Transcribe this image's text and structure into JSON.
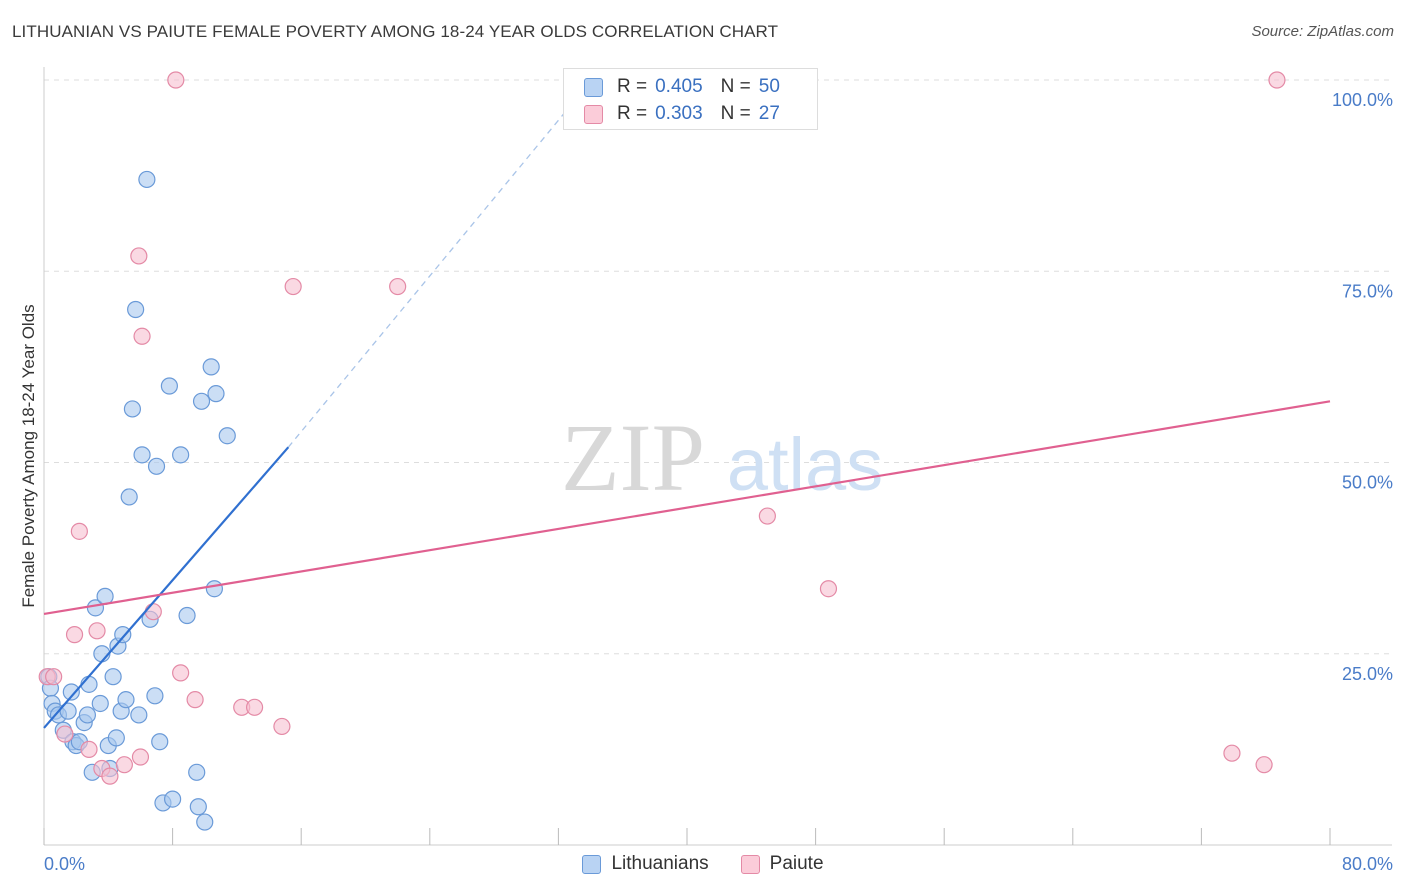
{
  "header": {
    "title": "LITHUANIAN VS PAIUTE FEMALE POVERTY AMONG 18-24 YEAR OLDS CORRELATION CHART",
    "source": "Source: ZipAtlas.com"
  },
  "watermark": {
    "zip": "ZIP",
    "atlas": "atlas"
  },
  "colors": {
    "blue_fill": "#a9c8ef",
    "blue_stroke": "#6a9ad8",
    "blue_line": "#3070d0",
    "pink_fill": "#f7bfd0",
    "pink_stroke": "#e48aa6",
    "pink_line": "#e06090",
    "axis_text": "#4a7cc8",
    "grid": "#dddddd"
  },
  "legend": {
    "rows": [
      {
        "r_label": "R =",
        "r_value": "0.405",
        "n_label": "N =",
        "n_value": "50"
      },
      {
        "r_label": "R =",
        "r_value": "0.303",
        "n_label": "N =",
        "n_value": "27"
      }
    ]
  },
  "bottom_legend": {
    "items": [
      "Lithuanians",
      "Paiute"
    ]
  },
  "chart_data": {
    "type": "scatter",
    "title": "LITHUANIAN VS PAIUTE FEMALE POVERTY AMONG 18-24 YEAR OLDS CORRELATION CHART",
    "xlabel": "",
    "ylabel": "Female Poverty Among 18-24 Year Olds",
    "xlim": [
      0,
      80
    ],
    "ylim": [
      0,
      100
    ],
    "x_tick_labels": [
      "0.0%",
      "80.0%"
    ],
    "y_ticks": [
      25,
      50,
      75,
      100
    ],
    "y_tick_labels": [
      "25.0%",
      "50.0%",
      "75.0%",
      "100.0%"
    ],
    "grid": true,
    "series": [
      {
        "name": "Lithuanians",
        "R": 0.405,
        "N": 50,
        "trend": {
          "x0": 0,
          "y0": 15.3,
          "x1": 15.2,
          "y1": 52.0,
          "dashed_to_x": 32.5,
          "dashed_to_y": 96.0
        },
        "points": [
          [
            0.3,
            22.0
          ],
          [
            0.4,
            20.5
          ],
          [
            0.5,
            18.5
          ],
          [
            0.7,
            17.5
          ],
          [
            0.9,
            17.0
          ],
          [
            1.2,
            15.0
          ],
          [
            1.5,
            17.5
          ],
          [
            1.7,
            20.0
          ],
          [
            1.8,
            13.5
          ],
          [
            2.0,
            13.0
          ],
          [
            2.2,
            13.5
          ],
          [
            2.5,
            16.0
          ],
          [
            2.7,
            17.0
          ],
          [
            2.8,
            21.0
          ],
          [
            3.0,
            9.5
          ],
          [
            3.2,
            31.0
          ],
          [
            3.5,
            18.5
          ],
          [
            3.6,
            25.0
          ],
          [
            3.8,
            32.5
          ],
          [
            4.0,
            13.0
          ],
          [
            4.1,
            10.0
          ],
          [
            4.3,
            22.0
          ],
          [
            4.5,
            14.0
          ],
          [
            4.6,
            26.0
          ],
          [
            4.8,
            17.5
          ],
          [
            4.9,
            27.5
          ],
          [
            5.1,
            19.0
          ],
          [
            5.3,
            45.5
          ],
          [
            5.5,
            57.0
          ],
          [
            5.7,
            70.0
          ],
          [
            5.9,
            17.0
          ],
          [
            6.1,
            51.0
          ],
          [
            6.4,
            87.0
          ],
          [
            6.6,
            29.5
          ],
          [
            6.9,
            19.5
          ],
          [
            7.0,
            49.5
          ],
          [
            7.2,
            13.5
          ],
          [
            7.4,
            5.5
          ],
          [
            7.8,
            60.0
          ],
          [
            8.0,
            6.0
          ],
          [
            8.5,
            51.0
          ],
          [
            8.9,
            30.0
          ],
          [
            9.5,
            9.5
          ],
          [
            9.6,
            5.0
          ],
          [
            9.8,
            58.0
          ],
          [
            10.0,
            3.0
          ],
          [
            10.4,
            62.5
          ],
          [
            10.6,
            33.5
          ],
          [
            10.7,
            59.0
          ],
          [
            11.4,
            53.5
          ]
        ]
      },
      {
        "name": "Paiute",
        "R": 0.303,
        "N": 27,
        "trend": {
          "x0": 0,
          "y0": 30.2,
          "x1": 80,
          "y1": 58.0
        },
        "points": [
          [
            0.2,
            22.0
          ],
          [
            0.6,
            22.0
          ],
          [
            1.3,
            14.5
          ],
          [
            1.9,
            27.5
          ],
          [
            2.2,
            41.0
          ],
          [
            2.8,
            12.5
          ],
          [
            3.3,
            28.0
          ],
          [
            3.6,
            10.0
          ],
          [
            4.1,
            9.0
          ],
          [
            5.0,
            10.5
          ],
          [
            5.9,
            77.0
          ],
          [
            6.0,
            11.5
          ],
          [
            6.1,
            66.5
          ],
          [
            6.8,
            30.5
          ],
          [
            8.2,
            100.0
          ],
          [
            8.5,
            22.5
          ],
          [
            9.4,
            19.0
          ],
          [
            12.3,
            18.0
          ],
          [
            13.1,
            18.0
          ],
          [
            14.8,
            15.5
          ],
          [
            15.5,
            73.0
          ],
          [
            22.0,
            73.0
          ],
          [
            45.0,
            43.0
          ],
          [
            48.8,
            33.5
          ],
          [
            73.9,
            12.0
          ],
          [
            75.9,
            10.5
          ],
          [
            76.7,
            100.0
          ]
        ]
      }
    ]
  }
}
